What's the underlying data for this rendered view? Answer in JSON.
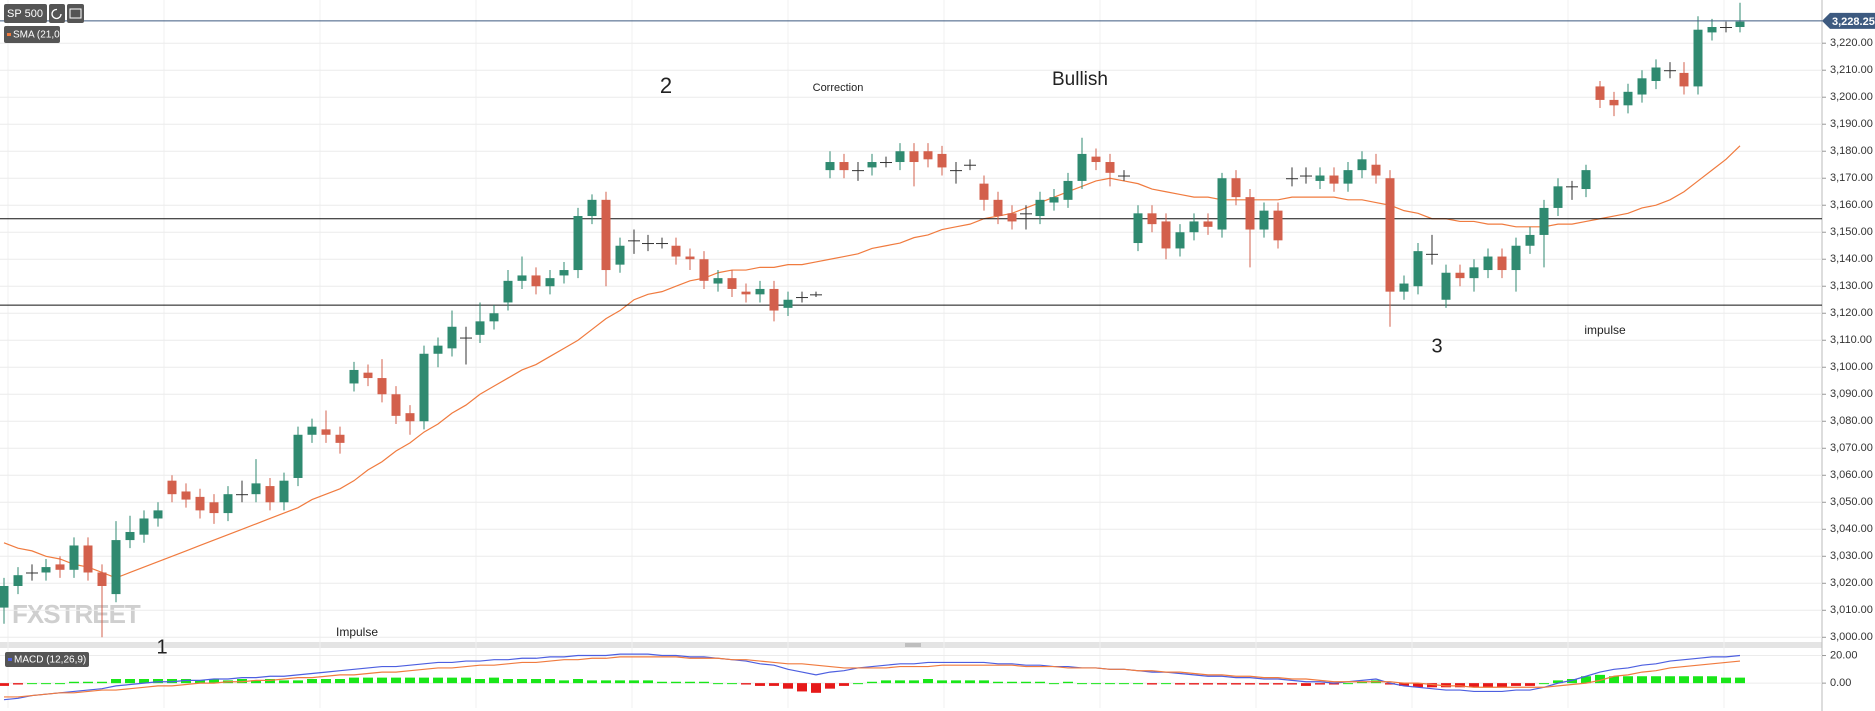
{
  "chart_data": [
    {
      "type": "candlestick",
      "title": "SP 500",
      "ohlc": {
        "up_color": "#2f8a70",
        "down_color": "#d3604c",
        "open": [
          3011,
          3019,
          3024,
          3024,
          3027,
          3025,
          3034,
          3024,
          3016,
          3036,
          3038,
          3044,
          3058,
          3054,
          3052,
          3050,
          3046,
          3053,
          3053,
          3056,
          3050,
          3059,
          3075,
          3077,
          3075,
          3094,
          3098,
          3096,
          3090,
          3083,
          3080,
          3105,
          3107,
          3111,
          3112,
          3117,
          3124,
          3132,
          3134,
          3130,
          3134,
          3136,
          3156,
          3162,
          3138,
          3147,
          3146,
          3146,
          3145,
          3141,
          3140,
          3131,
          3133,
          3128,
          3127,
          3129,
          3122,
          3126,
          3127,
          3173,
          3176,
          3173,
          3174,
          3176,
          3176,
          3180,
          3180,
          3179,
          3173,
          3175,
          3168,
          3162,
          3157,
          3157,
          3156,
          3161,
          3162,
          3169,
          3178,
          3176,
          3171,
          3146,
          3157,
          3154,
          3144,
          3150,
          3154,
          3151,
          3170,
          3163,
          3151,
          3158,
          3170,
          3171,
          3169,
          3171,
          3168,
          3173,
          3175,
          3170,
          3128,
          3130,
          3142,
          3125,
          3135,
          3133,
          3136,
          3141,
          3136,
          3145,
          3149,
          3159,
          3167,
          3166,
          3204,
          3199,
          3197,
          3201,
          3206,
          3210,
          3209,
          3204,
          3224,
          3226,
          3226
        ],
        "high": [
          3022,
          3026,
          3027,
          3029,
          3030,
          3037,
          3037,
          3027,
          3043,
          3045,
          3047,
          3050,
          3060,
          3057,
          3055,
          3053,
          3056,
          3058,
          3066,
          3059,
          3061,
          3078,
          3081,
          3084,
          3078,
          3102,
          3101,
          3103,
          3093,
          3086,
          3108,
          3111,
          3121,
          3115,
          3124,
          3123,
          3136,
          3141,
          3137,
          3136,
          3139,
          3159,
          3164,
          3165,
          3148,
          3151,
          3149,
          3148,
          3148,
          3144,
          3143,
          3136,
          3136,
          3131,
          3132,
          3132,
          3128,
          3128,
          3128,
          3180,
          3179,
          3176,
          3179,
          3178,
          3183,
          3183,
          3183,
          3182,
          3176,
          3177,
          3171,
          3165,
          3160,
          3160,
          3165,
          3166,
          3172,
          3185,
          3181,
          3179,
          3173,
          3160,
          3160,
          3157,
          3153,
          3157,
          3157,
          3172,
          3173,
          3166,
          3161,
          3161,
          3174,
          3174,
          3174,
          3174,
          3176,
          3180,
          3179,
          3173,
          3134,
          3146,
          3149,
          3138,
          3138,
          3140,
          3144,
          3144,
          3148,
          3152,
          3162,
          3170,
          3169,
          3175,
          3206,
          3202,
          3205,
          3210,
          3214,
          3213,
          3213,
          3230,
          3229,
          3228,
          3235
        ],
        "low": [
          3005,
          3016,
          3021,
          3021,
          3022,
          3022,
          3021,
          3000,
          3013,
          3033,
          3035,
          3041,
          3050,
          3048,
          3044,
          3042,
          3043,
          3050,
          3050,
          3047,
          3047,
          3056,
          3072,
          3072,
          3068,
          3091,
          3093,
          3087,
          3079,
          3075,
          3077,
          3100,
          3104,
          3101,
          3109,
          3114,
          3121,
          3129,
          3127,
          3127,
          3131,
          3133,
          3153,
          3130,
          3135,
          3142,
          3143,
          3144,
          3138,
          3136,
          3129,
          3128,
          3126,
          3124,
          3124,
          3117,
          3119,
          3124,
          3126,
          3170,
          3170,
          3169,
          3171,
          3174,
          3173,
          3167,
          3174,
          3171,
          3168,
          3173,
          3158,
          3153,
          3151,
          3151,
          3153,
          3158,
          3159,
          3166,
          3173,
          3167,
          3169,
          3143,
          3150,
          3140,
          3141,
          3147,
          3149,
          3148,
          3160,
          3137,
          3148,
          3144,
          3167,
          3168,
          3166,
          3165,
          3165,
          3170,
          3168,
          3115,
          3125,
          3127,
          3138,
          3122,
          3130,
          3128,
          3133,
          3133,
          3128,
          3142,
          3137,
          3156,
          3162,
          3163,
          3196,
          3193,
          3194,
          3198,
          3203,
          3207,
          3201,
          3201,
          3221,
          3224,
          3224
        ],
        "close": [
          3019,
          3023,
          3024,
          3026,
          3025,
          3034,
          3024,
          3019,
          3036,
          3039,
          3044,
          3047,
          3053,
          3051,
          3047,
          3046,
          3053,
          3053,
          3057,
          3050,
          3058,
          3075,
          3078,
          3075,
          3072,
          3099,
          3096,
          3090,
          3082,
          3080,
          3105,
          3108,
          3115,
          3111,
          3117,
          3120,
          3132,
          3134,
          3130,
          3133,
          3136,
          3156,
          3162,
          3136,
          3145,
          3147,
          3146,
          3146,
          3141,
          3140,
          3132,
          3133,
          3129,
          3127,
          3129,
          3121,
          3125,
          3126,
          3127,
          3176,
          3173,
          3173,
          3176,
          3176,
          3180,
          3176,
          3177,
          3174,
          3173,
          3175,
          3162,
          3156,
          3154,
          3157,
          3162,
          3163,
          3169,
          3179,
          3176,
          3172,
          3171,
          3157,
          3153,
          3144,
          3150,
          3154,
          3152,
          3170,
          3163,
          3151,
          3158,
          3147,
          3170,
          3171,
          3171,
          3168,
          3173,
          3177,
          3171,
          3128,
          3131,
          3143,
          3142,
          3135,
          3133,
          3137,
          3141,
          3136,
          3145,
          3149,
          3159,
          3167,
          3167,
          3173,
          3199,
          3197,
          3202,
          3207,
          3211,
          3210,
          3204,
          3225,
          3226,
          3226,
          3228
        ]
      },
      "series": [
        {
          "name": "SMA (21,0)",
          "color": "#f07b3f",
          "values": [
            3035,
            3033,
            3032,
            3030,
            3029,
            3027,
            3026,
            3024,
            3022,
            3024,
            3026,
            3028,
            3030,
            3032,
            3034,
            3036,
            3038,
            3040,
            3042,
            3044,
            3046,
            3048,
            3051,
            3053,
            3055,
            3058,
            3062,
            3065,
            3069,
            3072,
            3076,
            3079,
            3083,
            3086,
            3090,
            3093,
            3096,
            3099,
            3101,
            3104,
            3107,
            3110,
            3114,
            3118,
            3121,
            3125,
            3127,
            3128,
            3130,
            3132,
            3133,
            3135,
            3136,
            3136,
            3137,
            3137,
            3138,
            3138,
            3139,
            3140,
            3141,
            3142,
            3144,
            3145,
            3146,
            3148,
            3149,
            3151,
            3152,
            3153,
            3155,
            3156,
            3157,
            3159,
            3161,
            3163,
            3165,
            3167,
            3169,
            3170,
            3169,
            3168,
            3166,
            3165,
            3164,
            3163,
            3163,
            3162,
            3162,
            3162,
            3162,
            3162,
            3163,
            3163,
            3163,
            3163,
            3162,
            3162,
            3161,
            3160,
            3158,
            3157,
            3155,
            3155,
            3154,
            3154,
            3153,
            3153,
            3152,
            3152,
            3152,
            3153,
            3153,
            3154,
            3155,
            3156,
            3157,
            3159,
            3160,
            3162,
            3165,
            3169,
            3173,
            3177,
            3182
          ]
        }
      ],
      "hlines": [
        3155,
        3123
      ],
      "last_price": {
        "value": 3228.25,
        "label": "3,228.25",
        "color": "#3d5a80"
      },
      "annotations": [
        "2",
        "Correction",
        "Bullish",
        "3",
        "impulse",
        "Impulse",
        "1"
      ],
      "ylim": [
        2999,
        3236
      ],
      "yticks": [
        {
          "value": 3000,
          "label": "3,000.00"
        },
        {
          "value": 3010,
          "label": "3,010.00"
        },
        {
          "value": 3020,
          "label": "3,020.00"
        },
        {
          "value": 3030,
          "label": "3,030.00"
        },
        {
          "value": 3040,
          "label": "3,040.00"
        },
        {
          "value": 3050,
          "label": "3,050.00"
        },
        {
          "value": 3060,
          "label": "3,060.00"
        },
        {
          "value": 3070,
          "label": "3,070.00"
        },
        {
          "value": 3080,
          "label": "3,080.00"
        },
        {
          "value": 3090,
          "label": "3,090.00"
        },
        {
          "value": 3100,
          "label": "3,100.00"
        },
        {
          "value": 3110,
          "label": "3,110.00"
        },
        {
          "value": 3120,
          "label": "3,120.00"
        },
        {
          "value": 3130,
          "label": "3,130.00"
        },
        {
          "value": 3140,
          "label": "3,140.00"
        },
        {
          "value": 3150,
          "label": "3,150.00"
        },
        {
          "value": 3160,
          "label": "3,160.00"
        },
        {
          "value": 3170,
          "label": "3,170.00"
        },
        {
          "value": 3180,
          "label": "3,180.00"
        },
        {
          "value": 3190,
          "label": "3,190.00"
        },
        {
          "value": 3200,
          "label": "3,200.00"
        },
        {
          "value": 3210,
          "label": "3,210.00"
        },
        {
          "value": 3220,
          "label": "3,220.00"
        }
      ],
      "grid": true
    },
    {
      "type": "macd",
      "title": "MACD (12,26,9)",
      "series": [
        {
          "color": "#4d5fe0",
          "values": [
            -12,
            -11,
            -9,
            -8,
            -7,
            -6,
            -5,
            -4,
            -2,
            -1,
            0,
            1,
            1,
            2,
            2,
            3,
            3,
            4,
            4,
            5,
            5,
            6,
            7,
            8,
            9,
            10,
            11,
            12,
            12,
            13,
            14,
            15,
            15,
            16,
            16,
            17,
            17,
            18,
            18,
            19,
            19,
            20,
            20,
            20,
            21,
            21,
            21,
            20,
            20,
            19,
            19,
            18,
            17,
            16,
            14,
            13,
            10,
            8,
            6,
            8,
            9,
            11,
            12,
            13,
            14,
            14,
            15,
            15,
            15,
            15,
            15,
            14,
            14,
            13,
            13,
            12,
            12,
            11,
            11,
            10,
            10,
            9,
            8,
            8,
            7,
            6,
            5,
            5,
            4,
            4,
            3,
            3,
            2,
            1,
            1,
            0,
            1,
            2,
            3,
            0,
            -2,
            -3,
            -4,
            -5,
            -5,
            -6,
            -6,
            -6,
            -5,
            -5,
            -3,
            0,
            2,
            5,
            8,
            10,
            11,
            13,
            14,
            16,
            17,
            18,
            19,
            19,
            20
          ]
        },
        {
          "color": "#f07b3f",
          "values": [
            -10,
            -10,
            -9,
            -8,
            -7,
            -7,
            -6,
            -5,
            -5,
            -4,
            -3,
            -2,
            -2,
            -1,
            0,
            0,
            1,
            1,
            2,
            2,
            3,
            4,
            4,
            5,
            6,
            6,
            7,
            8,
            8,
            9,
            10,
            11,
            11,
            12,
            13,
            13,
            14,
            15,
            15,
            16,
            17,
            17,
            18,
            18,
            19,
            19,
            19,
            19,
            19,
            18,
            18,
            18,
            17,
            17,
            16,
            15,
            14,
            14,
            13,
            12,
            11,
            11,
            11,
            11,
            12,
            12,
            12,
            13,
            13,
            13,
            13,
            13,
            13,
            12,
            12,
            12,
            11,
            11,
            11,
            10,
            10,
            9,
            9,
            8,
            8,
            7,
            6,
            6,
            5,
            5,
            4,
            4,
            3,
            3,
            2,
            1,
            1,
            1,
            1,
            1,
            0,
            0,
            -1,
            -2,
            -2,
            -3,
            -3,
            -3,
            -3,
            -3,
            -3,
            -2,
            -1,
            0,
            2,
            5,
            6,
            8,
            9,
            11,
            12,
            13,
            14,
            15,
            16
          ]
        }
      ],
      "histogram": {
        "up_color": "#19e619",
        "down_color": "#e61919",
        "values": [
          -2,
          -1,
          0,
          0,
          0,
          1,
          1,
          1,
          3,
          3,
          3,
          3,
          3,
          3,
          2,
          3,
          2,
          3,
          2,
          3,
          2,
          2,
          3,
          3,
          3,
          4,
          4,
          4,
          4,
          4,
          4,
          4,
          4,
          4,
          3,
          4,
          3,
          3,
          3,
          3,
          2,
          3,
          2,
          2,
          2,
          2,
          2,
          1,
          1,
          1,
          1,
          0,
          0,
          -1,
          -2,
          -2,
          -4,
          -6,
          -7,
          -4,
          -2,
          0,
          1,
          2,
          2,
          2,
          3,
          2,
          2,
          2,
          2,
          1,
          1,
          1,
          1,
          0,
          1,
          0,
          0,
          0,
          0,
          0,
          -1,
          0,
          -1,
          -1,
          -1,
          -1,
          -1,
          -1,
          -1,
          -1,
          -1,
          -2,
          -1,
          -1,
          0,
          1,
          2,
          -1,
          -2,
          -3,
          -3,
          -3,
          -3,
          -3,
          -3,
          -3,
          -2,
          -2,
          0,
          2,
          3,
          5,
          6,
          5,
          5,
          5,
          5,
          5,
          5,
          5,
          5,
          4,
          4
        ]
      },
      "ylim": [
        -18,
        24
      ],
      "yticks": [
        {
          "value": 20,
          "label": "20.00"
        },
        {
          "value": 0,
          "label": "0.00"
        }
      ],
      "grid": true
    }
  ],
  "watermark": "FXSTREET"
}
